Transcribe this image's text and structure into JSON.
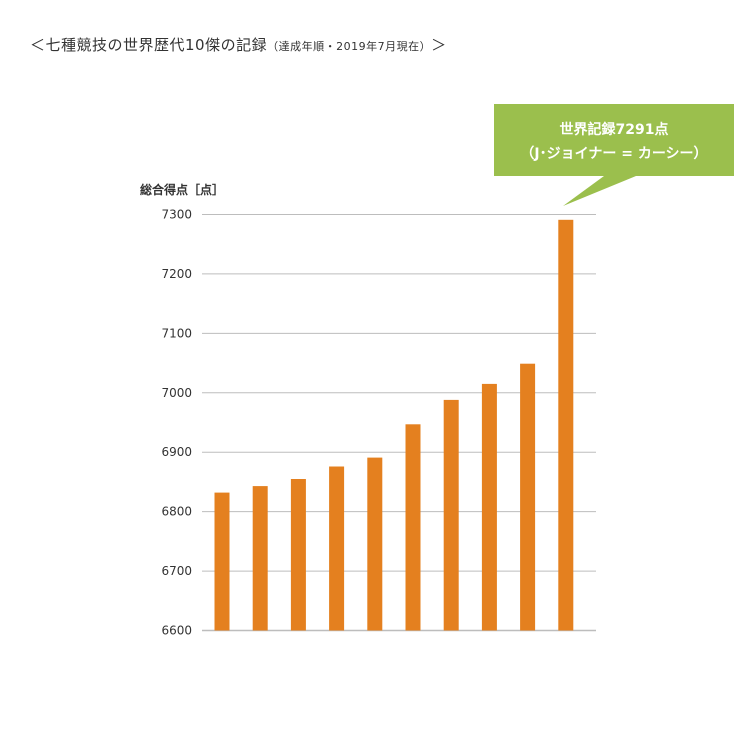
{
  "header": {
    "title_main": "＜七種競技の世界歴代10傑の記録",
    "title_sub": "（達成年順・2019年7月現在）",
    "title_close": "＞"
  },
  "callout": {
    "line1": "世界記録7291点",
    "line2": "（J･ジョイナー = カーシー）",
    "color": "#9bbf4d"
  },
  "chart_data": {
    "type": "bar",
    "ylabel": "総合得点［点］",
    "ylim": [
      6600,
      7300
    ],
    "yticks": [
      6600,
      6700,
      6800,
      6900,
      7000,
      7100,
      7200,
      7300
    ],
    "grid": true,
    "values": [
      6832,
      6843,
      6855,
      6876,
      6891,
      6947,
      6988,
      7015,
      7049,
      7291
    ],
    "bar_color": "#e4801f",
    "grid_color": "#bdbdbd"
  }
}
